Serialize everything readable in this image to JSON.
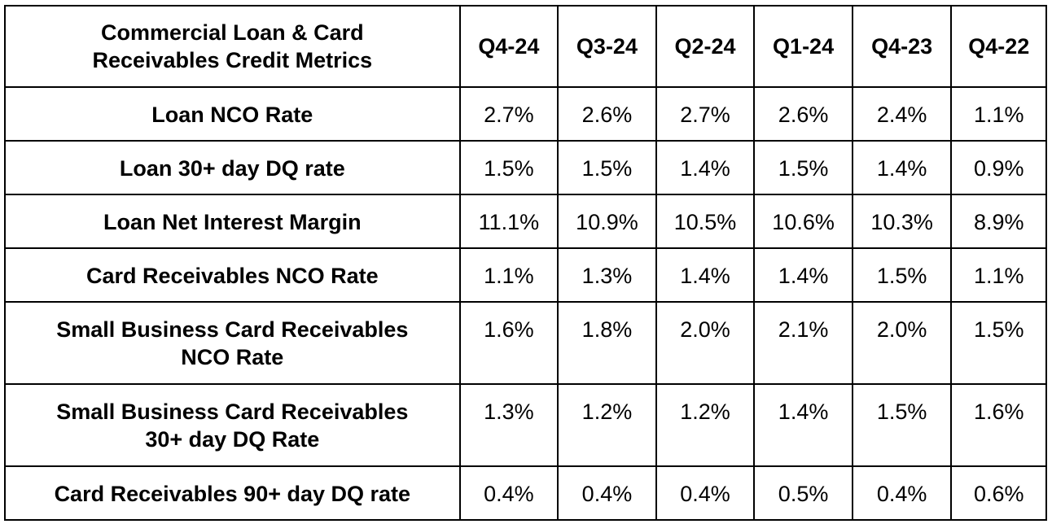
{
  "table": {
    "header_title_line1": "Commercial Loan & Card",
    "header_title_line2": "Receivables Credit Metrics",
    "columns": [
      "Q4-24",
      "Q3-24",
      "Q2-24",
      "Q1-24",
      "Q4-23",
      "Q4-22"
    ],
    "rows": [
      {
        "label_line1": "Loan NCO Rate",
        "label_line2": "",
        "values": [
          "2.7%",
          "2.6%",
          "2.7%",
          "2.6%",
          "2.4%",
          "1.1%"
        ]
      },
      {
        "label_line1": "Loan 30+ day DQ rate",
        "label_line2": "",
        "values": [
          "1.5%",
          "1.5%",
          "1.4%",
          "1.5%",
          "1.4%",
          "0.9%"
        ]
      },
      {
        "label_line1": "Loan Net Interest Margin",
        "label_line2": "",
        "values": [
          "11.1%",
          "10.9%",
          "10.5%",
          "10.6%",
          "10.3%",
          "8.9%"
        ]
      },
      {
        "label_line1": "Card Receivables NCO Rate",
        "label_line2": "",
        "values": [
          "1.1%",
          "1.3%",
          "1.4%",
          "1.4%",
          "1.5%",
          "1.1%"
        ]
      },
      {
        "label_line1": "Small Business Card Receivables",
        "label_line2": "NCO Rate",
        "values": [
          "1.6%",
          "1.8%",
          "2.0%",
          "2.1%",
          "2.0%",
          "1.5%"
        ]
      },
      {
        "label_line1": "Small Business Card Receivables",
        "label_line2": "30+ day DQ Rate",
        "values": [
          "1.3%",
          "1.2%",
          "1.2%",
          "1.4%",
          "1.5%",
          "1.6%"
        ]
      },
      {
        "label_line1": "Card Receivables 90+ day DQ rate",
        "label_line2": "",
        "values": [
          "0.4%",
          "0.4%",
          "0.4%",
          "0.5%",
          "0.4%",
          "0.6%"
        ]
      }
    ]
  }
}
